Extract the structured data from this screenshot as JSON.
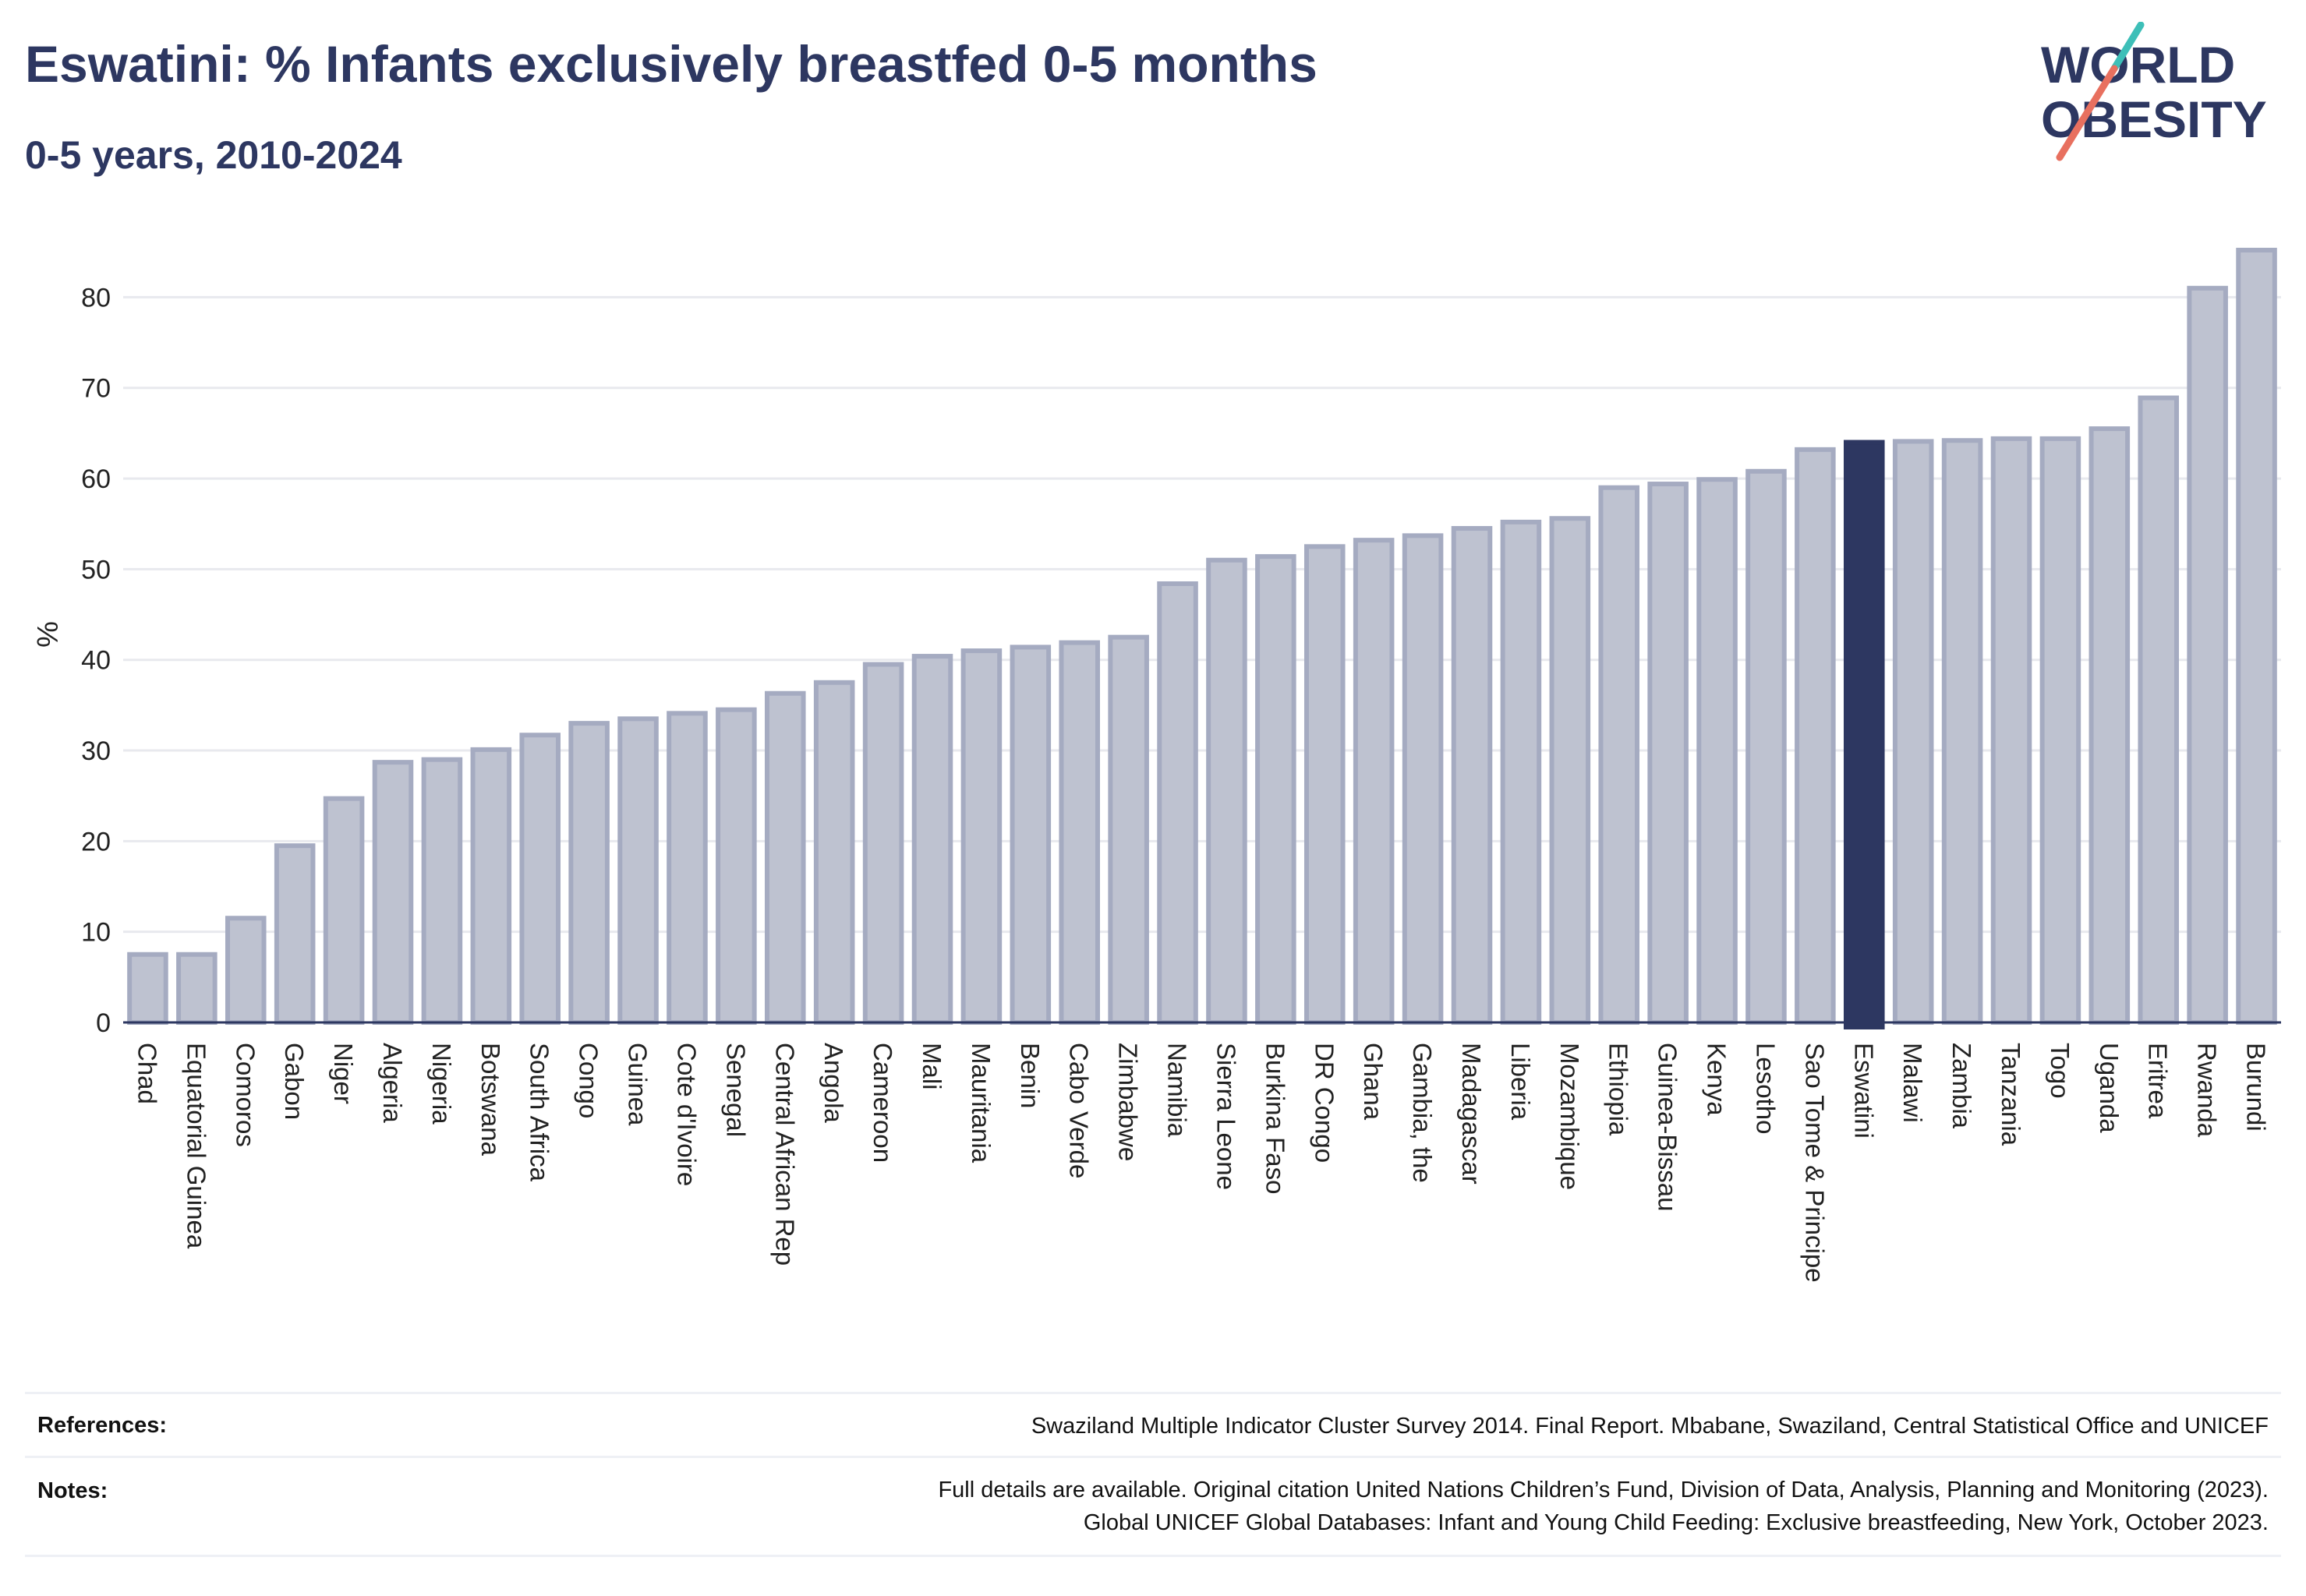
{
  "header": {
    "title": "Eswatini: % Infants exclusively breastfed 0-5 months",
    "subtitle": "0-5 years, 2010-2024"
  },
  "logo": {
    "line1": "WORLD",
    "line2": "OBESITY"
  },
  "colors": {
    "title": "#2d3761",
    "bar_default": "#bec2d0",
    "bar_default_stroke": "#a5abc1",
    "bar_highlight": "#2d3761",
    "grid": "#e8e9ee",
    "logo_teal": "#3dbfb8",
    "logo_coral": "#e8705f"
  },
  "chart_data": {
    "type": "bar",
    "ylabel": "%",
    "ylim": [
      0,
      87
    ],
    "yticks": [
      0,
      10,
      20,
      30,
      40,
      50,
      60,
      70,
      80
    ],
    "grid": true,
    "highlight": "Eswatini",
    "categories": [
      "Chad",
      "Equatorial Guinea",
      "Comoros",
      "Gabon",
      "Niger",
      "Algeria",
      "Nigeria",
      "Botswana",
      "South Africa",
      "Congo",
      "Guinea",
      "Cote d'Ivoire",
      "Senegal",
      "Central African Rep",
      "Angola",
      "Cameroon",
      "Mali",
      "Mauritania",
      "Benin",
      "Cabo Verde",
      "Zimbabwe",
      "Namibia",
      "Sierra Leone",
      "Burkina Faso",
      "DR Congo",
      "Ghana",
      "Gambia, the",
      "Madagascar",
      "Liberia",
      "Mozambique",
      "Ethiopia",
      "Guinea-Bissau",
      "Kenya",
      "Lesotho",
      "Sao Tome & Principe",
      "Eswatini",
      "Malawi",
      "Zambia",
      "Tanzania",
      "Togo",
      "Uganda",
      "Eritrea",
      "Rwanda",
      "Burundi"
    ],
    "values": [
      7.5,
      7.5,
      11.5,
      19.5,
      24.7,
      28.7,
      29.0,
      30.1,
      31.7,
      33.0,
      33.5,
      34.1,
      34.5,
      36.3,
      37.5,
      39.5,
      40.4,
      41.0,
      41.4,
      41.9,
      42.5,
      48.4,
      51.0,
      51.4,
      52.5,
      53.2,
      53.7,
      54.5,
      55.2,
      55.6,
      59.0,
      59.4,
      59.9,
      60.8,
      63.2,
      64.0,
      64.1,
      64.2,
      64.4,
      64.4,
      65.5,
      68.9,
      81.0,
      85.2
    ]
  },
  "footer": {
    "references_label": "References:",
    "references_text": "Swaziland Multiple Indicator Cluster Survey 2014. Final Report. Mbabane, Swaziland, Central Statistical Office and UNICEF",
    "notes_label": "Notes:",
    "notes_line1": "Full details are available. Original citation United Nations Children’s Fund, Division of Data, Analysis, Planning and Monitoring (2023).",
    "notes_line2": "Global UNICEF Global Databases: Infant and Young Child Feeding: Exclusive breastfeeding, New York, October 2023."
  }
}
